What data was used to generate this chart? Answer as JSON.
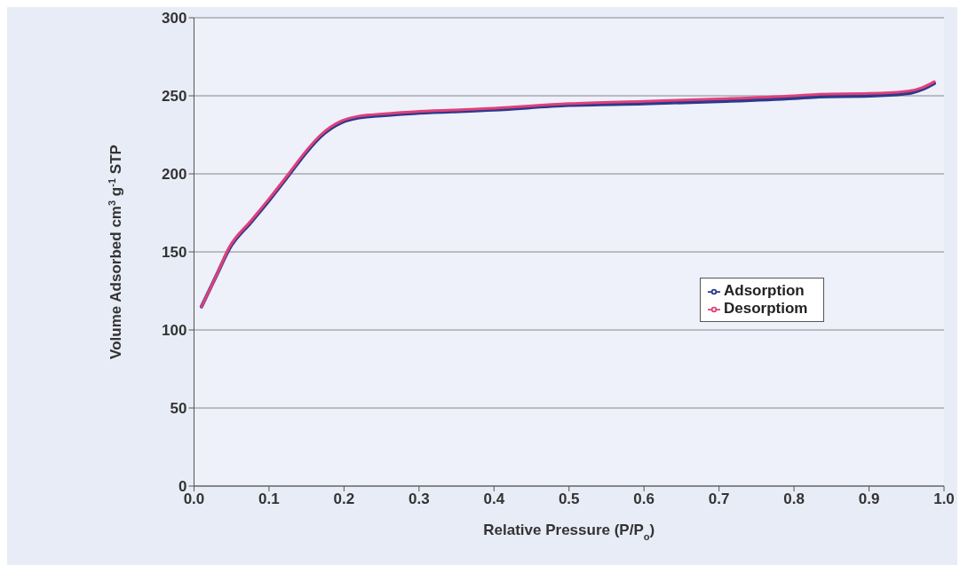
{
  "chart_data": {
    "type": "line",
    "xlabel": "Relative Pressure (P/P$_{o}$)",
    "ylabel": "Volume Adsorbed cm$^{3}$ g$^{-1}$ STP",
    "xlim": [
      0,
      1
    ],
    "xticks": [
      {
        "value": 0,
        "label": "0.0"
      },
      0.1,
      0.2,
      0.3,
      0.4,
      0.5,
      0.6,
      0.7,
      0.8,
      0.9,
      {
        "value": 1,
        "label": "1.0"
      }
    ],
    "ylim": [
      0,
      300
    ],
    "yticks": [
      0,
      50,
      100,
      150,
      200,
      250,
      300
    ],
    "grid": "y",
    "legend": "right",
    "marker": "none",
    "line_style": "solid",
    "x": [
      0.01,
      0.03,
      0.047,
      0.076,
      0.1,
      0.126,
      0.15,
      0.169,
      0.197,
      0.22,
      0.24,
      0.3,
      0.4,
      0.5,
      0.6,
      0.7,
      0.8,
      0.834,
      0.9,
      0.952,
      0.97,
      0.987
    ],
    "series": [
      {
        "name": "Adsorption",
        "color": "#2b3a8c",
        "values": [
          115,
          135,
          152,
          169,
          183,
          199,
          214,
          224,
          233,
          236,
          237,
          239,
          241,
          244,
          245,
          246.5,
          248.5,
          249.5,
          250,
          251.5,
          254,
          258
        ]
      },
      {
        "name": "Desorptiom",
        "color": "#e0407a",
        "values": [
          115,
          135,
          153,
          170,
          184,
          200,
          215,
          225,
          234,
          237,
          238,
          240,
          242,
          245,
          246.5,
          248,
          250,
          251,
          251.5,
          253,
          255,
          259
        ]
      }
    ]
  }
}
